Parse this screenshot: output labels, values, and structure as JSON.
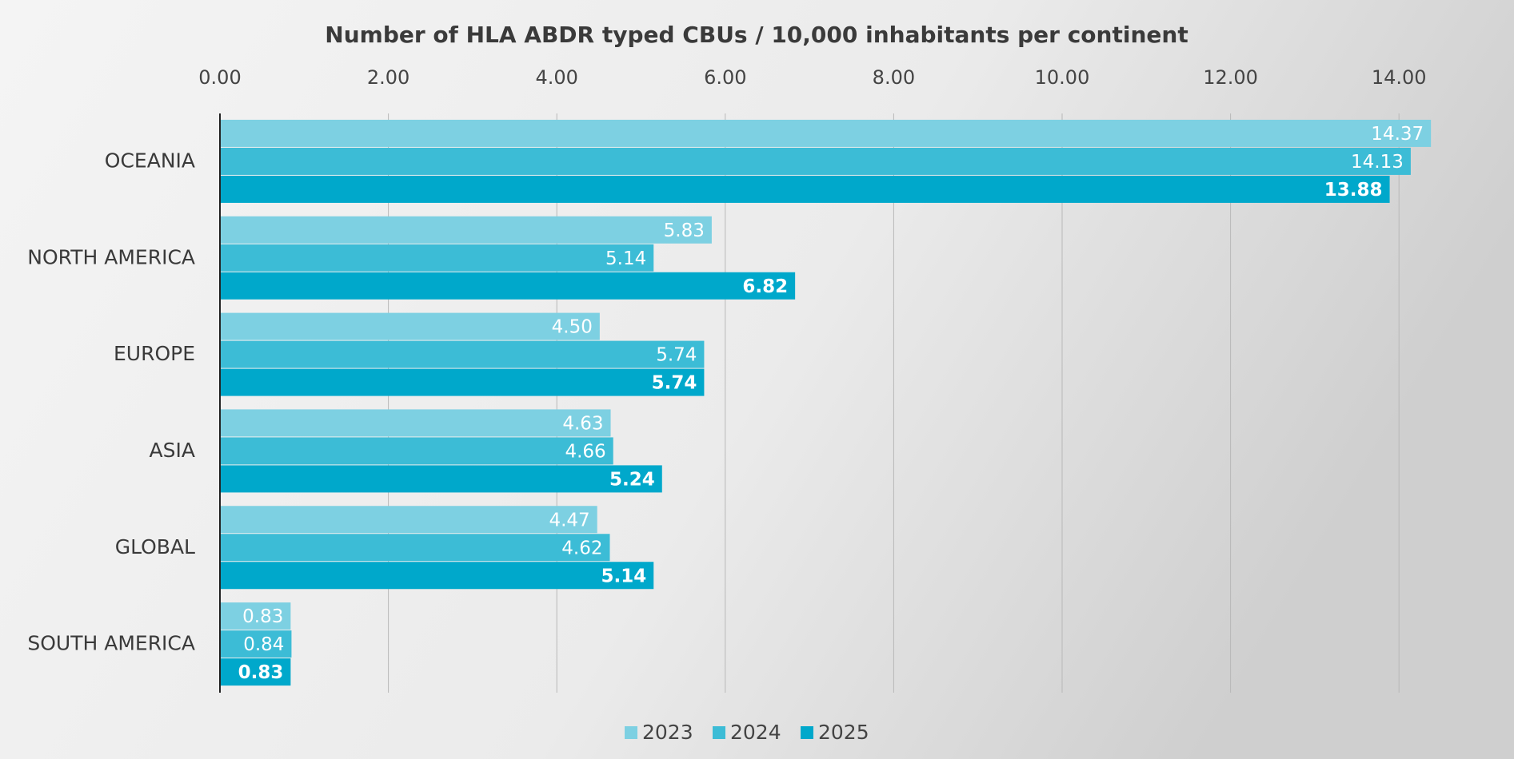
{
  "chart_data": {
    "type": "hbar",
    "title": "Number of HLA ABDR typed CBUs / 10,000 inhabitants per continent",
    "categories": [
      "OCEANIA",
      "NORTH AMERICA",
      "EUROPE",
      "ASIA",
      "GLOBAL",
      "SOUTH AMERICA"
    ],
    "series": [
      {
        "name": "2023",
        "color": "#7dd0e2",
        "values": [
          14.37,
          5.83,
          4.5,
          4.63,
          4.47,
          0.83
        ],
        "value_labels": [
          "14.37",
          "5.83",
          "4.50",
          "4.63",
          "4.47",
          "0.83"
        ]
      },
      {
        "name": "2024",
        "color": "#3cbcd6",
        "values": [
          14.13,
          5.14,
          5.74,
          4.66,
          4.62,
          0.84
        ],
        "value_labels": [
          "14.13",
          "5.14",
          "5.74",
          "4.66",
          "4.62",
          "0.84"
        ]
      },
      {
        "name": "2025",
        "color": "#00a8cb",
        "values": [
          13.88,
          6.82,
          5.74,
          5.24,
          5.14,
          0.83
        ],
        "value_labels": [
          "13.88",
          "6.82",
          "5.74",
          "5.24",
          "5.14",
          "0.83"
        ]
      }
    ],
    "xlim": [
      0,
      14.5
    ],
    "xticks": [
      {
        "value": 0,
        "label": "0.00"
      },
      {
        "value": 2,
        "label": "2.00"
      },
      {
        "value": 4,
        "label": "4.00"
      },
      {
        "value": 6,
        "label": "6.00"
      },
      {
        "value": 8,
        "label": "8.00"
      },
      {
        "value": 10,
        "label": "10.00"
      },
      {
        "value": 12,
        "label": "12.00"
      },
      {
        "value": 14,
        "label": "14.00"
      }
    ],
    "grid": true,
    "legend": "bottom"
  }
}
